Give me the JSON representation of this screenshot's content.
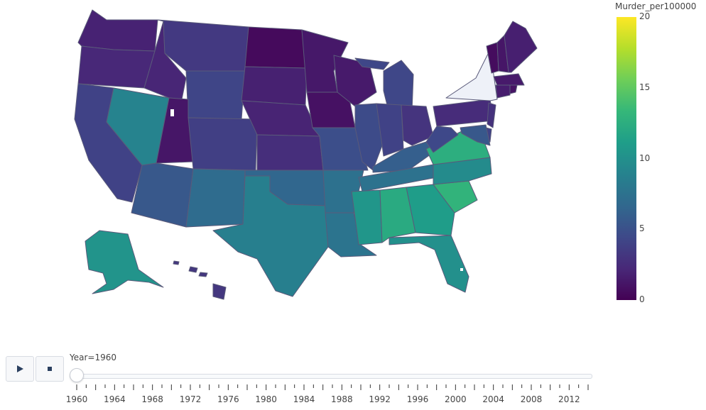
{
  "colorbar": {
    "title": "Murder_per100000",
    "ticks": [
      "20",
      "15",
      "10",
      "5",
      "0"
    ],
    "range": [
      0,
      20
    ],
    "colorscale": [
      "#440154",
      "#482878",
      "#3e4989",
      "#31688e",
      "#26828e",
      "#1f9e89",
      "#35b779",
      "#6ece58",
      "#b5de2b",
      "#fde725"
    ]
  },
  "slider": {
    "current_label": "Year=1960",
    "current_year": 1960,
    "tick_labels": [
      "1960",
      "1964",
      "1968",
      "1972",
      "1976",
      "1980",
      "1984",
      "1988",
      "1992",
      "1996",
      "2000",
      "2004",
      "2008",
      "2012"
    ],
    "first_year": 1960,
    "last_year": 2014
  },
  "controls": {
    "play_icon": "play-icon",
    "stop_icon": "stop-icon"
  },
  "states": [
    {
      "name": "WA",
      "value": 1.9
    },
    {
      "name": "OR",
      "value": 2.2
    },
    {
      "name": "CA",
      "value": 4.0
    },
    {
      "name": "NV",
      "value": 9.0
    },
    {
      "name": "ID",
      "value": 2.1
    },
    {
      "name": "MT",
      "value": 3.4
    },
    {
      "name": "WY",
      "value": 4.2
    },
    {
      "name": "UT",
      "value": 1.2
    },
    {
      "name": "CO",
      "value": 3.8
    },
    {
      "name": "AZ",
      "value": 5.5
    },
    {
      "name": "NM",
      "value": 7.0
    },
    {
      "name": "ND",
      "value": 0.5
    },
    {
      "name": "SD",
      "value": 1.8
    },
    {
      "name": "NE",
      "value": 2.0
    },
    {
      "name": "KS",
      "value": 2.6
    },
    {
      "name": "OK",
      "value": 6.6
    },
    {
      "name": "TX",
      "value": 8.6
    },
    {
      "name": "MN",
      "value": 1.3
    },
    {
      "name": "IA",
      "value": 0.9
    },
    {
      "name": "MO",
      "value": 4.8
    },
    {
      "name": "AR",
      "value": 7.4
    },
    {
      "name": "LA",
      "value": 7.7
    },
    {
      "name": "WI",
      "value": 1.4
    },
    {
      "name": "IL",
      "value": 4.6
    },
    {
      "name": "MI",
      "value": 4.3
    },
    {
      "name": "IN",
      "value": 4.0
    },
    {
      "name": "OH",
      "value": 3.0
    },
    {
      "name": "KY",
      "value": 6.0
    },
    {
      "name": "TN",
      "value": 7.5
    },
    {
      "name": "MS",
      "value": 10.5
    },
    {
      "name": "AL",
      "value": 12.2
    },
    {
      "name": "GA",
      "value": 11.0
    },
    {
      "name": "FL",
      "value": 10.0
    },
    {
      "name": "SC",
      "value": 13.0
    },
    {
      "name": "NC",
      "value": 9.6
    },
    {
      "name": "VA",
      "value": 12.5
    },
    {
      "name": "WV",
      "value": 4.4
    },
    {
      "name": "PA",
      "value": 2.5
    },
    {
      "name": "NY",
      "value": null
    },
    {
      "name": "VT",
      "value": 0.6
    },
    {
      "name": "NH",
      "value": 1.2
    },
    {
      "name": "ME",
      "value": 1.7
    },
    {
      "name": "MA",
      "value": 1.4
    },
    {
      "name": "CT",
      "value": 1.6
    },
    {
      "name": "RI",
      "value": 1.0
    },
    {
      "name": "NJ",
      "value": 2.8
    },
    {
      "name": "DE",
      "value": 4.0
    },
    {
      "name": "MD",
      "value": 5.5
    },
    {
      "name": "AK",
      "value": 10.3
    },
    {
      "name": "HI",
      "value": 3.2
    }
  ]
}
